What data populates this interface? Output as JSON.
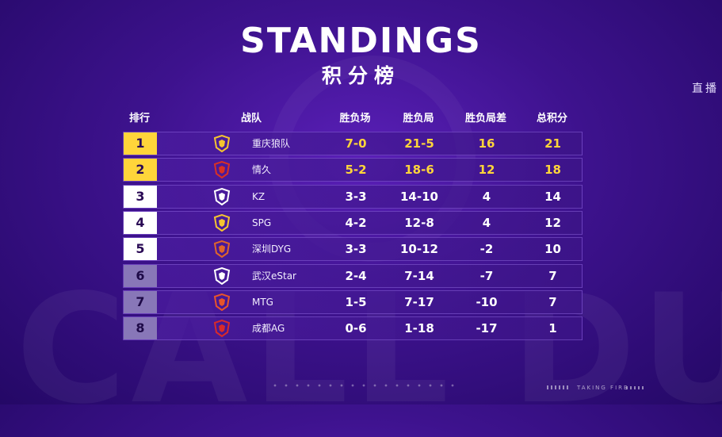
{
  "title": "STANDINGS",
  "subtitle": "积分榜",
  "live_label": "直播",
  "header": {
    "rank": "排行",
    "team": "战队",
    "record": "胜负场",
    "games": "胜负局",
    "diff": "胜负局差",
    "points": "总积分"
  },
  "rows": [
    {
      "rank": "1",
      "team": "重庆狼队",
      "record": "7-0",
      "games": "21-5",
      "diff": "16",
      "points": "21",
      "highlight": true,
      "rank_style": "gold",
      "logo_color": "#f4c430"
    },
    {
      "rank": "2",
      "team": "情久",
      "record": "5-2",
      "games": "18-6",
      "diff": "12",
      "points": "18",
      "highlight": true,
      "rank_style": "gold",
      "logo_color": "#d93025"
    },
    {
      "rank": "3",
      "team": "KZ",
      "record": "3-3",
      "games": "14-10",
      "diff": "4",
      "points": "14",
      "highlight": false,
      "rank_style": "white",
      "logo_color": "#ffffff"
    },
    {
      "rank": "4",
      "team": "SPG",
      "record": "4-2",
      "games": "12-8",
      "diff": "4",
      "points": "12",
      "highlight": false,
      "rank_style": "white",
      "logo_color": "#f4c430"
    },
    {
      "rank": "5",
      "team": "深圳DYG",
      "record": "3-3",
      "games": "10-12",
      "diff": "-2",
      "points": "10",
      "highlight": false,
      "rank_style": "white",
      "logo_color": "#e0652b"
    },
    {
      "rank": "6",
      "team": "武汉eStar",
      "record": "2-4",
      "games": "7-14",
      "diff": "-7",
      "points": "7",
      "highlight": false,
      "rank_style": "dim",
      "logo_color": "#ffffff"
    },
    {
      "rank": "7",
      "team": "MTG",
      "record": "1-5",
      "games": "7-17",
      "diff": "-10",
      "points": "7",
      "highlight": false,
      "rank_style": "dim",
      "logo_color": "#e8542a"
    },
    {
      "rank": "8",
      "team": "成都AG",
      "record": "0-6",
      "games": "1-18",
      "diff": "-17",
      "points": "1",
      "highlight": false,
      "rank_style": "dim",
      "logo_color": "#d92a2a"
    }
  ],
  "footer_brand": "TAKING FIRE",
  "colors": {
    "gold": "#ffd53a",
    "background": "#3d128d"
  }
}
